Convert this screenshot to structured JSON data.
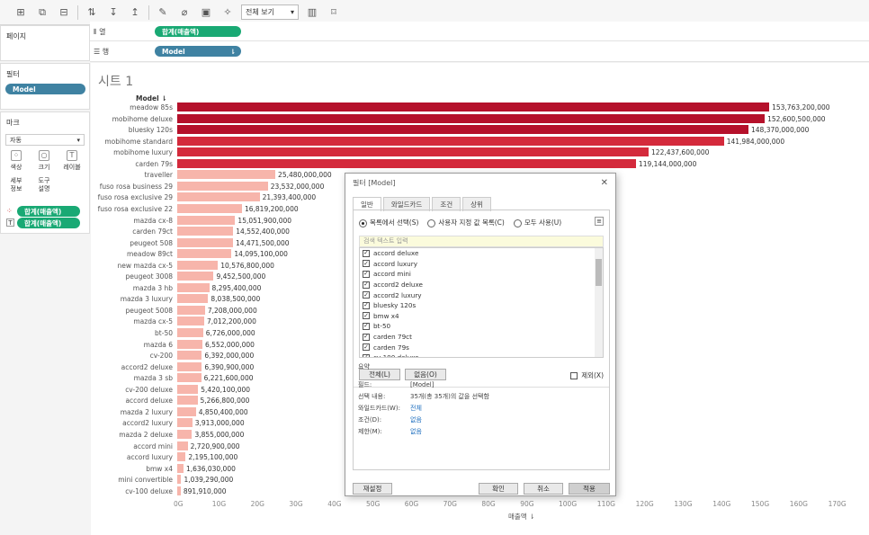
{
  "toolbar": {
    "view_select": "전체 보기"
  },
  "pages_panel": {
    "title": "페이지"
  },
  "filters_panel": {
    "title": "필터",
    "pill": "Model"
  },
  "marks_panel": {
    "title": "마크",
    "mark_type": "자동",
    "buttons": [
      "색상",
      "크기",
      "레이블",
      "세부\n정보",
      "도구\n설명"
    ],
    "pills": [
      "합계(매출액)",
      "합계(매출액)"
    ]
  },
  "columns_shelf": {
    "label": "열",
    "pill": "합계(매출액)"
  },
  "rows_shelf": {
    "label": "행",
    "pill": "Model"
  },
  "sheet": {
    "title": "시트 1",
    "row_header": "Model",
    "x_axis_title": "매출액"
  },
  "colors": {
    "dark_bar": "#b5112b",
    "mid_bar": "#d42a3c",
    "light_bar": "#f7b5ab",
    "green_pill": "#19a974",
    "blue_pill": "#3f82a2"
  },
  "chart_data": {
    "type": "bar",
    "orientation": "horizontal",
    "title": "시트 1",
    "ylabel": "Model",
    "xlabel": "매출액",
    "xlim": [
      0,
      170000000000
    ],
    "x_ticks": [
      "0G",
      "10G",
      "20G",
      "30G",
      "40G",
      "50G",
      "60G",
      "70G",
      "80G",
      "90G",
      "100G",
      "110G",
      "120G",
      "130G",
      "140G",
      "150G",
      "160G",
      "170G"
    ],
    "categories": [
      "meadow 85s",
      "mobihome deluxe",
      "bluesky 120s",
      "mobihome standard",
      "mobihome luxury",
      "carden 79s",
      "traveller",
      "fuso rosa business 29",
      "fuso rosa exclusive 29",
      "fuso rosa exclusive 22",
      "mazda cx-8",
      "carden 79ct",
      "peugeot 508",
      "meadow 89ct",
      "new mazda cx-5",
      "peugeot 3008",
      "mazda 3 hb",
      "mazda 3 luxury",
      "peugeot 5008",
      "mazda cx-5",
      "bt-50",
      "mazda 6",
      "cv-200",
      "accord2 deluxe",
      "mazda 3 sb",
      "cv-200 deluxe",
      "accord deluxe",
      "mazda 2 luxury",
      "accord2 luxury",
      "mazda 2 deluxe",
      "accord mini",
      "accord luxury",
      "bmw x4",
      "mini convertible",
      "cv-100 deluxe"
    ],
    "values": [
      153763200000,
      152600500000,
      148370000000,
      141984000000,
      122437600000,
      119144000000,
      25480000000,
      23532000000,
      21393400000,
      16819200000,
      15051900000,
      14552400000,
      14471500000,
      14095100000,
      10576800000,
      9452500000,
      8295400000,
      8038500000,
      7208000000,
      7012200000,
      6726000000,
      6552000000,
      6392000000,
      6390900000,
      6221600000,
      5420100000,
      5266800000,
      4850400000,
      3913000000,
      3855000000,
      2720900000,
      2195100000,
      1636030000,
      1039290000,
      891910000
    ],
    "labels": [
      "153,763,200,000",
      "152,600,500,000",
      "148,370,000,000",
      "141,984,000,000",
      "122,437,600,000",
      "119,144,000,000",
      "25,480,000,000",
      "23,532,000,000",
      "21,393,400,000",
      "16,819,200,000",
      "15,051,900,000",
      "14,552,400,000",
      "14,471,500,000",
      "14,095,100,000",
      "10,576,800,000",
      "9,452,500,000",
      "8,295,400,000",
      "8,038,500,000",
      "7,208,000,000",
      "7,012,200,000",
      "6,726,000,000",
      "6,552,000,000",
      "6,392,000,000",
      "6,390,900,000",
      "6,221,600,000",
      "5,420,100,000",
      "5,266,800,000",
      "4,850,400,000",
      "3,913,000,000",
      "3,855,000,000",
      "2,720,900,000",
      "2,195,100,000",
      "1,636,030,000",
      "1,039,290,000",
      "891,910,000"
    ]
  },
  "dialog": {
    "title": "필터 [Model]",
    "tabs": [
      "일반",
      "와일드카드",
      "조건",
      "상위"
    ],
    "radios": [
      "목록에서 선택(S)",
      "사용자 지정 값 목록(C)",
      "모두 사용(U)"
    ],
    "search_placeholder": "검색 텍스트 입력",
    "items": [
      "accord deluxe",
      "accord luxury",
      "accord mini",
      "accord2 deluxe",
      "accord2 luxury",
      "bluesky 120s",
      "bmw x4",
      "bt-50",
      "carden 79ct",
      "carden 79s",
      "cv-100 deluxe"
    ],
    "all_button": "전체(L)",
    "none_button": "없음(O)",
    "exclude_label": "제외(X)",
    "summary_title": "요약",
    "summary": [
      {
        "key": "필드:",
        "value": "[Model]"
      },
      {
        "key": "선택 내용:",
        "value": "35개(총 35개)의 값을 선택함"
      },
      {
        "key": "와일드카드(W):",
        "value": "전체"
      },
      {
        "key": "조건(D):",
        "value": "없음"
      },
      {
        "key": "제한(M):",
        "value": "없음"
      }
    ],
    "reset_button": "재설정",
    "ok_button": "확인",
    "cancel_button": "취소",
    "apply_button": "적용"
  }
}
